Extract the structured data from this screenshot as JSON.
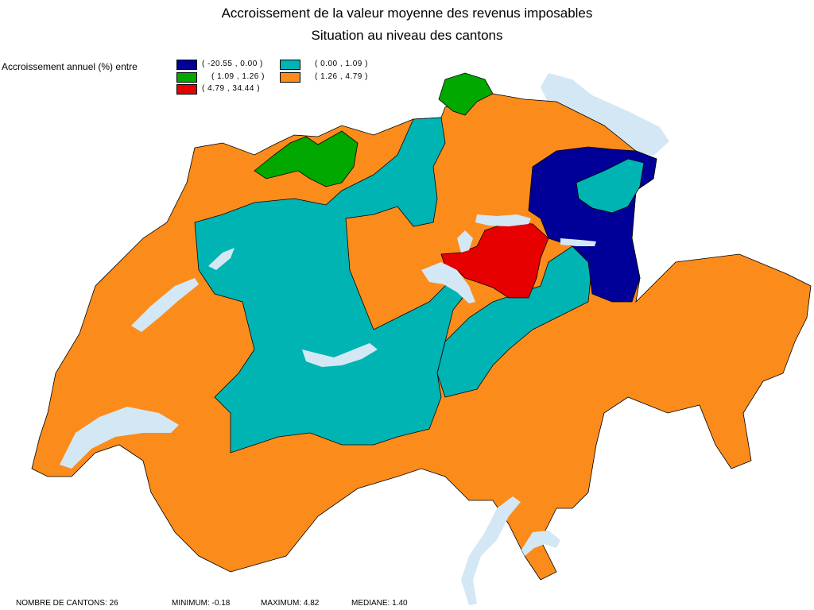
{
  "title_line1": "Accroissement de la valeur moyenne des revenus imposables",
  "title_line2": "Situation au niveau des cantons",
  "legend": {
    "caption": "Accroissement annuel (%) entre",
    "classes": [
      {
        "range": "( -20.55 , 0.00 )",
        "color": "#000099"
      },
      {
        "range": "( 0.00 , 1.09 )",
        "color": "#00b4b4"
      },
      {
        "range": "( 1.09 , 1.26 )",
        "color": "#00a800"
      },
      {
        "range": "( 1.26 , 4.79 )",
        "color": "#fb8c1c"
      },
      {
        "range": "( 4.79 , 34.44 )",
        "color": "#e60000"
      }
    ]
  },
  "footer": {
    "count": "NOMBRE DE CANTONS: 26",
    "minimum": "MINIMUM: -0.18",
    "maximum": "MAXIMUM: 4.82",
    "median": "MEDIANE: 1.40"
  },
  "colors": {
    "lake": "#d3e8f4",
    "border": "#000000"
  }
}
